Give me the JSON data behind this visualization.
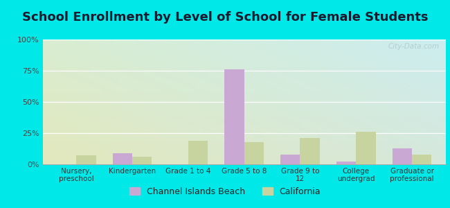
{
  "title": "School Enrollment by Level of School for Female Students",
  "categories": [
    "Nursery,\npreschool",
    "Kindergarten",
    "Grade 1 to 4",
    "Grade 5 to 8",
    "Grade 9 to\n12",
    "College\nundergrad",
    "Graduate or\nprofessional"
  ],
  "channel_islands": [
    0,
    9,
    0,
    76,
    8,
    2,
    13
  ],
  "california": [
    7,
    6,
    19,
    18,
    21,
    26,
    8
  ],
  "channel_color": "#c9a8d4",
  "california_color": "#c8d4a0",
  "bar_width": 0.35,
  "ylim": [
    0,
    100
  ],
  "yticks": [
    0,
    25,
    50,
    75,
    100
  ],
  "ytick_labels": [
    "0%",
    "25%",
    "50%",
    "75%",
    "100%"
  ],
  "outer_bg": "#00e8e8",
  "title_fontsize": 13,
  "legend_labels": [
    "Channel Islands Beach",
    "California"
  ],
  "watermark": "City-Data.com",
  "bg_left_bottom": "#d0eecc",
  "bg_right_top": "#cceef0"
}
